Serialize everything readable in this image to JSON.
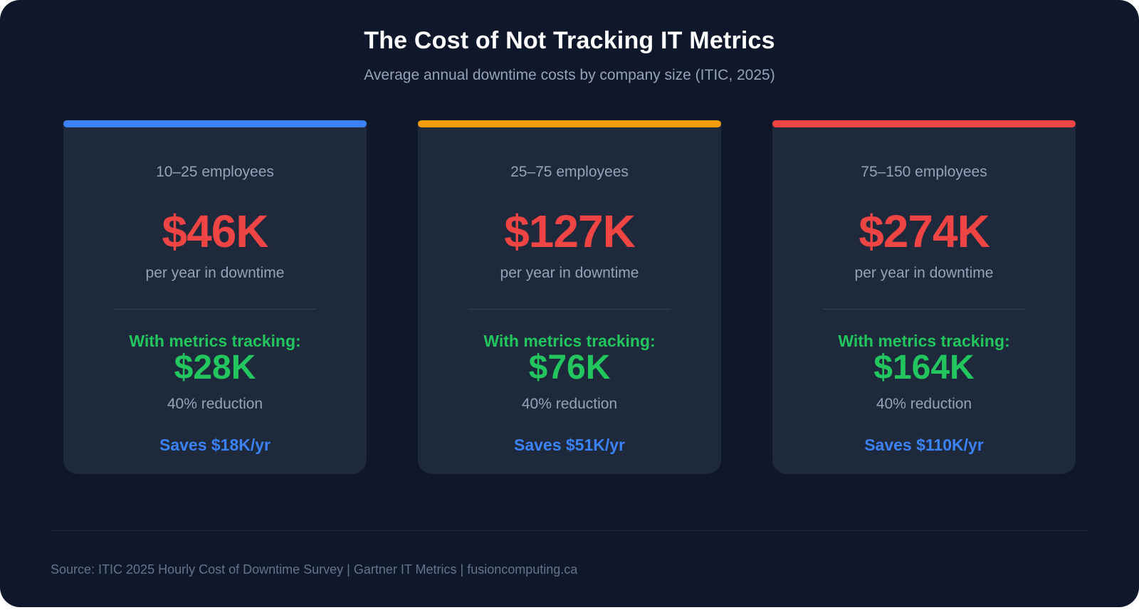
{
  "header": {
    "title": "The Cost of Not Tracking IT Metrics",
    "subtitle": "Average annual downtime costs by company size (ITIC, 2025)"
  },
  "cards": [
    {
      "accent_color": "#3b82f6",
      "size_label": "10–25 employees",
      "downtime_cost": "$46K",
      "downtime_note": "per year in downtime",
      "with_tracking_label": "With metrics tracking:",
      "with_tracking_cost": "$28K",
      "reduction": "40% reduction",
      "savings": "Saves $18K/yr"
    },
    {
      "accent_color": "#f59e0b",
      "size_label": "25–75 employees",
      "downtime_cost": "$127K",
      "downtime_note": "per year in downtime",
      "with_tracking_label": "With metrics tracking:",
      "with_tracking_cost": "$76K",
      "reduction": "40% reduction",
      "savings": "Saves $51K/yr"
    },
    {
      "accent_color": "#ef4444",
      "size_label": "75–150 employees",
      "downtime_cost": "$274K",
      "downtime_note": "per year in downtime",
      "with_tracking_label": "With metrics tracking:",
      "with_tracking_cost": "$164K",
      "reduction": "40% reduction",
      "savings": "Saves $110K/yr"
    }
  ],
  "colors": {
    "background": "#0f172a",
    "card": "#1e293b",
    "cost_red": "#ef4444",
    "tracking_green": "#22c55e",
    "savings_blue": "#3b82f6",
    "muted_text": "#94a3b8"
  },
  "footer": {
    "source": "Source: ITIC 2025 Hourly Cost of Downtime Survey | Gartner IT Metrics | fusioncomputing.ca"
  }
}
